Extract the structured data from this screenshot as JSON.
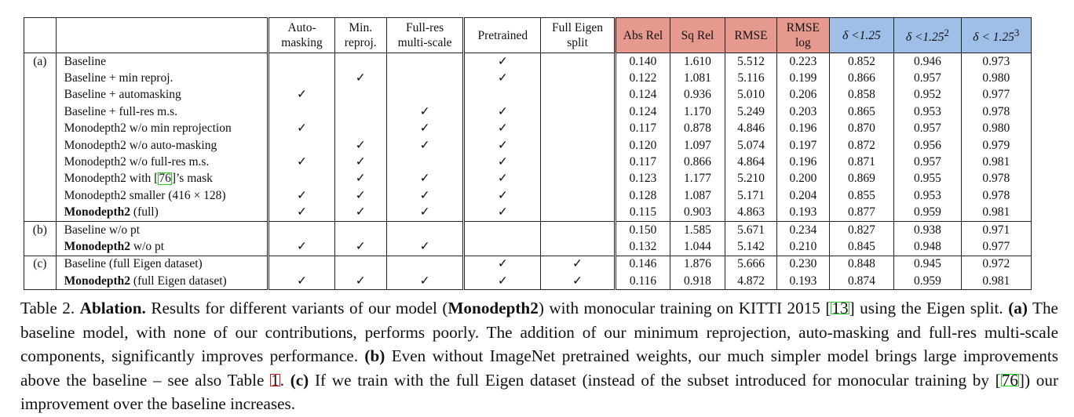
{
  "columns": {
    "automasking": "Auto-\nmasking",
    "minreproj": "Min.\nreproj.",
    "fullres": "Full-res\nmulti-scale",
    "pretrained": "Pretrained",
    "eigen": "Full Eigen\nsplit",
    "absrel": "Abs Rel",
    "sqrel": "Sq Rel",
    "rmse": "RMSE",
    "rmselog": "RMSE\nlog",
    "d1": "δ <1.25",
    "d2_base": "δ <1.25",
    "d2_sup": "2",
    "d3_base": "δ < 1.25",
    "d3_sup": "3"
  },
  "header_colors": {
    "error_metrics": "#e6998f",
    "accuracy_metrics": "#9fbfe8"
  },
  "groups": [
    {
      "label": "(a)",
      "rows": [
        {
          "name": "Baseline",
          "name_bold": false,
          "checks": [
            false,
            false,
            false,
            true,
            false
          ],
          "vals": [
            "0.140",
            "1.610",
            "5.512",
            "0.223",
            "0.852",
            "0.946",
            "0.973"
          ],
          "bold": [
            false,
            false,
            false,
            false,
            false,
            false,
            false
          ]
        },
        {
          "name": "Baseline + min reproj.",
          "name_bold": false,
          "checks": [
            false,
            true,
            false,
            true,
            false
          ],
          "vals": [
            "0.122",
            "1.081",
            "5.116",
            "0.199",
            "0.866",
            "0.957",
            "0.980"
          ],
          "bold": [
            false,
            false,
            false,
            false,
            false,
            false,
            false
          ]
        },
        {
          "name": "Baseline + automasking",
          "name_bold": false,
          "checks": [
            true,
            false,
            false,
            false,
            false
          ],
          "vals": [
            "0.124",
            "0.936",
            "5.010",
            "0.206",
            "0.858",
            "0.952",
            "0.977"
          ],
          "bold": [
            false,
            false,
            false,
            false,
            false,
            false,
            false
          ]
        },
        {
          "name": "Baseline + full-res m.s.",
          "name_bold": false,
          "checks": [
            false,
            false,
            true,
            true,
            false
          ],
          "vals": [
            "0.124",
            "1.170",
            "5.249",
            "0.203",
            "0.865",
            "0.953",
            "0.978"
          ],
          "bold": [
            false,
            false,
            false,
            false,
            false,
            false,
            false
          ]
        },
        {
          "name": "Monodepth2 w/o min reprojection",
          "name_bold": false,
          "checks": [
            true,
            false,
            true,
            true,
            false
          ],
          "vals": [
            "0.117",
            "0.878",
            "4.846",
            "0.196",
            "0.870",
            "0.957",
            "0.980"
          ],
          "bold": [
            false,
            false,
            false,
            false,
            false,
            false,
            false
          ]
        },
        {
          "name": "Monodepth2 w/o auto-masking",
          "name_bold": false,
          "checks": [
            false,
            true,
            true,
            true,
            false
          ],
          "vals": [
            "0.120",
            "1.097",
            "5.074",
            "0.197",
            "0.872",
            "0.956",
            "0.979"
          ],
          "bold": [
            false,
            false,
            false,
            false,
            false,
            false,
            false
          ]
        },
        {
          "name": "Monodepth2 w/o full-res m.s.",
          "name_bold": false,
          "checks": [
            true,
            true,
            false,
            true,
            false
          ],
          "vals": [
            "0.117",
            "0.866",
            "4.864",
            "0.196",
            "0.871",
            "0.957",
            "0.981"
          ],
          "bold": [
            false,
            true,
            false,
            false,
            false,
            false,
            true
          ]
        },
        {
          "name_pre": "Monodepth2 with [",
          "name_cite": "76",
          "name_post": "]’s mask",
          "name_bold": false,
          "checks": [
            false,
            true,
            true,
            true,
            false
          ],
          "vals": [
            "0.123",
            "1.177",
            "5.210",
            "0.200",
            "0.869",
            "0.955",
            "0.978"
          ],
          "bold": [
            false,
            false,
            false,
            false,
            false,
            false,
            false
          ]
        },
        {
          "name": "Monodepth2 smaller (416 × 128)",
          "name_bold": false,
          "checks": [
            true,
            true,
            true,
            true,
            false
          ],
          "vals": [
            "0.128",
            "1.087",
            "5.171",
            "0.204",
            "0.855",
            "0.953",
            "0.978"
          ],
          "bold": [
            false,
            false,
            false,
            false,
            false,
            false,
            false
          ]
        },
        {
          "name_b": "Monodepth2",
          "name_rest": " (full)",
          "name_bold": true,
          "checks": [
            true,
            true,
            true,
            true,
            false
          ],
          "vals": [
            "0.115",
            "0.903",
            "4.863",
            "0.193",
            "0.877",
            "0.959",
            "0.981"
          ],
          "bold": [
            true,
            false,
            true,
            true,
            true,
            true,
            true
          ]
        }
      ]
    },
    {
      "label": "(b)",
      "rows": [
        {
          "name": "Baseline w/o pt",
          "name_bold": false,
          "checks": [
            false,
            false,
            false,
            false,
            false
          ],
          "vals": [
            "0.150",
            "1.585",
            "5.671",
            "0.234",
            "0.827",
            "0.938",
            "0.971"
          ],
          "bold": [
            false,
            false,
            false,
            false,
            false,
            false,
            false
          ]
        },
        {
          "name_b": "Monodepth2",
          "name_rest": " w/o pt",
          "name_bold": true,
          "checks": [
            true,
            true,
            true,
            false,
            false
          ],
          "vals": [
            "0.132",
            "1.044",
            "5.142",
            "0.210",
            "0.845",
            "0.948",
            "0.977"
          ],
          "bold": [
            true,
            true,
            true,
            true,
            true,
            true,
            true
          ]
        }
      ]
    },
    {
      "label": "(c)",
      "rows": [
        {
          "name": "Baseline (full Eigen dataset)",
          "name_bold": false,
          "checks": [
            false,
            false,
            false,
            true,
            true
          ],
          "vals": [
            "0.146",
            "1.876",
            "5.666",
            "0.230",
            "0.848",
            "0.945",
            "0.972"
          ],
          "bold": [
            false,
            false,
            false,
            false,
            false,
            false,
            false
          ]
        },
        {
          "name_b": "Monodepth2",
          "name_rest": " (full Eigen dataset)",
          "name_bold": true,
          "checks": [
            true,
            true,
            true,
            true,
            true
          ],
          "vals": [
            "0.116",
            "0.918",
            "4.872",
            "0.193",
            "0.874",
            "0.959",
            "0.981"
          ],
          "bold": [
            true,
            true,
            true,
            true,
            true,
            true,
            true
          ]
        }
      ]
    }
  ],
  "check_symbol": "✓",
  "caption": {
    "table_label": "Table 2.",
    "title": "Ablation.",
    "t1": " Results for different variants of our model (",
    "model": "Monodepth2",
    "t2": ") with monocular training on KITTI 2015 [",
    "cite_kitti": "13",
    "t3": "] using the Eigen split. ",
    "a_label": "(a)",
    "a_text": " The baseline model, with none of our contributions, performs poorly. The addition of our minimum reprojection, auto-masking and full-res multi-scale components, significantly improves performance. ",
    "b_label": "(b)",
    "b_text": " Even without ImageNet pretrained weights, our much simpler model brings large improvements above the baseline – see also Table ",
    "cite_table": "1",
    "b_end": ". ",
    "c_label": "(c)",
    "c_text": " If we train with the full Eigen dataset (instead of the subset introduced for monocular training by [",
    "cite_76": "76",
    "c_end": "]) our improvement over the baseline increases."
  }
}
